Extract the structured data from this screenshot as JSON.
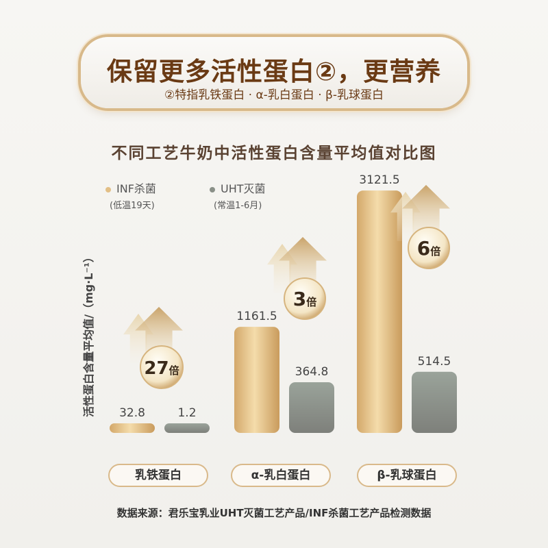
{
  "header": {
    "headline": "保留更多活性蛋白②，更营养",
    "note": "②特指乳铁蛋白 · α-乳白蛋白 · β-乳球蛋白"
  },
  "chart_data": {
    "type": "bar",
    "title": "不同工艺牛奶中活性蛋白含量平均值对比图",
    "ylabel": "活性蛋白含量平均值/（mg·L⁻¹）",
    "categories": [
      "乳铁蛋白",
      "α-乳白蛋白",
      "β-乳球蛋白"
    ],
    "series": [
      {
        "name": "INF杀菌",
        "note": "(低温19天)",
        "values": [
          32.8,
          1161.5,
          3121.5
        ],
        "color": "#e2bf86"
      },
      {
        "name": "UHT灭菌",
        "note": "(常温1-6月)",
        "values": [
          1.2,
          364.8,
          514.5
        ],
        "color": "#8a9088"
      }
    ],
    "value_labels": [
      [
        "32.8",
        "1.2"
      ],
      [
        "1161.5",
        "364.8"
      ],
      [
        "3121.5",
        "514.5"
      ]
    ],
    "multipliers": [
      {
        "number": "27",
        "unit": "倍"
      },
      {
        "number": "3",
        "unit": "倍"
      },
      {
        "number": "6",
        "unit": "倍"
      }
    ],
    "legend_position": "top-left",
    "grid": false
  },
  "footer": {
    "source": "数据来源：君乐宝乳业UHT灭菌工艺产品/INF杀菌工艺产品检测数据"
  }
}
